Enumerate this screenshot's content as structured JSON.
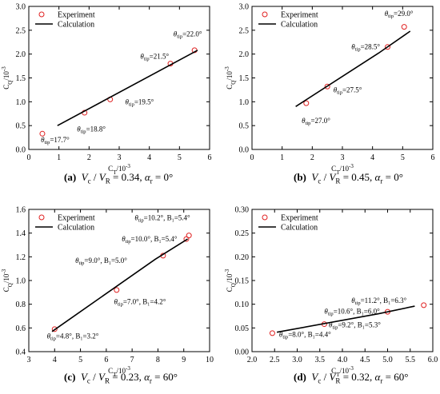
{
  "chart_data": [
    {
      "type": "scatter",
      "panel": "a",
      "xlabel": "C_T/10^-3",
      "ylabel": "C_Q/10^-3",
      "xlim": [
        0,
        6
      ],
      "ylim": [
        0,
        3.0
      ],
      "xticks": [
        0,
        1,
        2,
        3,
        4,
        5,
        6
      ],
      "xtick_labels": [
        "0",
        "1",
        "2",
        "3",
        "4",
        "5",
        "6"
      ],
      "yticks": [
        0,
        0.5,
        1.0,
        1.5,
        2.0,
        2.5,
        3.0
      ],
      "ytick_labels": [
        "0.0",
        "0.5",
        "1.0",
        "1.5",
        "2.0",
        "2.5",
        "3.0"
      ],
      "legend_position": "top-left",
      "series": [
        {
          "name": "Experiment",
          "kind": "points",
          "x": [
            0.45,
            1.85,
            2.7,
            4.7,
            5.5
          ],
          "y": [
            0.33,
            0.77,
            1.05,
            1.8,
            2.08
          ]
        },
        {
          "name": "Calculation",
          "kind": "line",
          "x": [
            0.95,
            5.6
          ],
          "y": [
            0.5,
            2.08
          ]
        }
      ],
      "annotations": [
        {
          "sub": "tip",
          "text": "=17.7°",
          "x": 0.4,
          "y": 0.15
        },
        {
          "sub": "tip",
          "text": "=18.8°",
          "x": 1.6,
          "y": 0.38
        },
        {
          "sub": "tip",
          "text": "=19.5°",
          "x": 3.2,
          "y": 0.95
        },
        {
          "sub": "tip",
          "text": "=21.5°",
          "x": 3.7,
          "y": 1.9
        },
        {
          "sub": "tip",
          "text": "=22.0°",
          "x": 4.8,
          "y": 2.37
        }
      ],
      "caption": {
        "label": "(a)",
        "ratio": "0.34",
        "alpha": "0°"
      }
    },
    {
      "type": "scatter",
      "panel": "b",
      "xlabel": "C_T/10^-3",
      "ylabel": "C_Q/10^-3",
      "xlim": [
        0,
        6
      ],
      "ylim": [
        0,
        3.0
      ],
      "xticks": [
        0,
        1,
        2,
        3,
        4,
        5,
        6
      ],
      "xtick_labels": [
        "0",
        "1",
        "2",
        "3",
        "4",
        "5",
        "6"
      ],
      "yticks": [
        0,
        0.5,
        1.0,
        1.5,
        2.0,
        2.5,
        3.0
      ],
      "ytick_labels": [
        "0.0",
        "0.5",
        "1.0",
        "1.5",
        "2.0",
        "2.5",
        "3.0"
      ],
      "legend_position": "top-left",
      "series": [
        {
          "name": "Experiment",
          "kind": "points",
          "x": [
            1.8,
            2.5,
            4.5,
            5.05
          ],
          "y": [
            0.97,
            1.32,
            2.15,
            2.57
          ]
        },
        {
          "name": "Calculation",
          "kind": "line",
          "x": [
            1.45,
            4.2,
            5.25
          ],
          "y": [
            0.9,
            2.02,
            2.48
          ]
        }
      ],
      "annotations": [
        {
          "sub": "tip",
          "text": "=27.0°",
          "x": 1.65,
          "y": 0.55
        },
        {
          "sub": "tip",
          "text": "=27.5°",
          "x": 2.7,
          "y": 1.2
        },
        {
          "sub": "tip",
          "text": "=28.5°",
          "x": 3.3,
          "y": 2.1
        },
        {
          "sub": "tip",
          "text": "=29.0°",
          "x": 4.4,
          "y": 2.8
        }
      ],
      "caption": {
        "label": "(b)",
        "ratio": "0.45",
        "alpha": "0°"
      }
    },
    {
      "type": "scatter",
      "panel": "c",
      "xlabel": "C_T/10^-3",
      "ylabel": "C_Q/10^-3",
      "xlim": [
        3,
        10
      ],
      "ylim": [
        0.4,
        1.6
      ],
      "xticks": [
        3,
        4,
        5,
        6,
        7,
        8,
        9,
        10
      ],
      "xtick_labels": [
        "3",
        "4",
        "5",
        "6",
        "7",
        "8",
        "9",
        "10"
      ],
      "yticks": [
        0.4,
        0.6,
        0.8,
        1.0,
        1.2,
        1.4,
        1.6
      ],
      "ytick_labels": [
        "0.4",
        "0.6",
        "0.8",
        "1.0",
        "1.2",
        "1.4",
        "1.6"
      ],
      "legend_position": "top-left",
      "series": [
        {
          "name": "Experiment",
          "kind": "points",
          "x": [
            4.0,
            6.4,
            8.2,
            9.1,
            9.2
          ],
          "y": [
            0.59,
            0.92,
            1.21,
            1.35,
            1.38
          ]
        },
        {
          "name": "Calculation",
          "kind": "line",
          "x": [
            3.9,
            7.9,
            9.15
          ],
          "y": [
            0.57,
            1.18,
            1.35
          ]
        }
      ],
      "annotations": [
        {
          "sub": "tip",
          "text": "=4.8°,   B₁=3.2°",
          "x": 3.7,
          "y": 0.51
        },
        {
          "sub": "tip",
          "text": "=7.0°,   B₁=4.2°",
          "x": 6.3,
          "y": 0.8
        },
        {
          "sub": "tip",
          "text": "=9.0°,   B₁=5.0°",
          "x": 4.8,
          "y": 1.15
        },
        {
          "sub": "tip",
          "text": "=10.0°,   B₁=5.4°",
          "x": 6.6,
          "y": 1.33
        },
        {
          "sub": "tip",
          "text": "=10.2°,   B₁=5.4°",
          "x": 7.1,
          "y": 1.51
        }
      ],
      "caption": {
        "label": "(c)",
        "ratio": "0.23",
        "alpha": "60°"
      }
    },
    {
      "type": "scatter",
      "panel": "d",
      "xlabel": "C_T/10^-3",
      "ylabel": "C_Q/10^-3",
      "xlim": [
        2.0,
        6.0
      ],
      "ylim": [
        0.0,
        0.3
      ],
      "xticks": [
        2.0,
        2.5,
        3.0,
        3.5,
        4.0,
        4.5,
        5.0,
        5.5,
        6.0
      ],
      "xtick_labels": [
        "2.0",
        "2.5",
        "3.0",
        "3.5",
        "4.0",
        "4.5",
        "5.0",
        "5.5",
        "6.0"
      ],
      "yticks": [
        0.0,
        0.05,
        0.1,
        0.15,
        0.2,
        0.25,
        0.3
      ],
      "ytick_labels": [
        "0.00",
        "0.05",
        "0.10",
        "0.15",
        "0.20",
        "0.25",
        "0.30"
      ],
      "legend_position": "top-left",
      "series": [
        {
          "name": "Experiment",
          "kind": "points",
          "x": [
            2.45,
            3.6,
            5.0,
            5.8
          ],
          "y": [
            0.039,
            0.058,
            0.084,
            0.098
          ]
        },
        {
          "name": "Calculation",
          "kind": "line",
          "x": [
            2.55,
            4.8,
            5.6
          ],
          "y": [
            0.041,
            0.08,
            0.096
          ]
        }
      ],
      "annotations": [
        {
          "sub": "tip",
          "text": "=8.0°,   B₁=4.4°",
          "x": 2.6,
          "y": 0.031
        },
        {
          "sub": "tip",
          "text": "=9.2°,   B₁=5.3°",
          "x": 3.7,
          "y": 0.051
        },
        {
          "sub": "tip",
          "text": "=10.6°,   B₁=6.0°",
          "x": 3.6,
          "y": 0.08
        },
        {
          "sub": "tip",
          "text": "=11.2°,   B₁=6.3°",
          "x": 4.2,
          "y": 0.103
        }
      ],
      "caption": {
        "label": "(d)",
        "ratio": "0.32",
        "alpha": "60°"
      }
    }
  ]
}
